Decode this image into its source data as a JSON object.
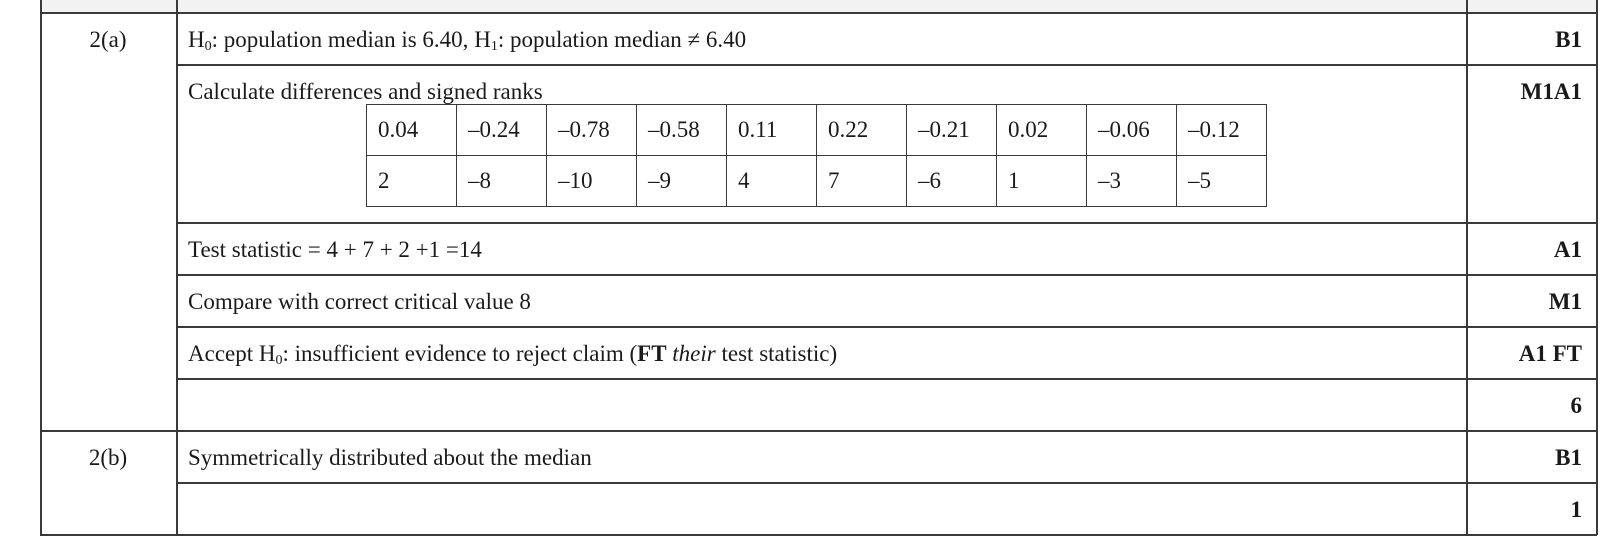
{
  "rows": {
    "hypotheses": {
      "question": "2(a)",
      "h0_symbol": "H",
      "h0_sub": "0",
      "h0_text": ": population median is 6.40, ",
      "h1_symbol": "H",
      "h1_sub": "1",
      "h1_text": ": population median ≠ 6.40",
      "mark": "B1"
    },
    "differences": {
      "text": "Calculate differences and signed ranks",
      "mark": "M1A1",
      "diffs": [
        "0.04",
        "–0.24",
        "–0.78",
        "–0.58",
        "0.11",
        "0.22",
        "–0.21",
        "0.02",
        "–0.06",
        "–0.12"
      ],
      "ranks": [
        "2",
        "–8",
        "–10",
        "–9",
        "4",
        "7",
        "–6",
        "1",
        "–3",
        "–5"
      ]
    },
    "test_statistic": {
      "text": "Test statistic = 4 + 7 + 2 +1 =14",
      "mark": "A1"
    },
    "compare": {
      "text": "Compare with correct critical value 8",
      "mark": "M1"
    },
    "accept": {
      "prefix": "Accept H",
      "sub": "0",
      "middle": ": insufficient evidence to reject claim (",
      "ft": "FT",
      "their": "their",
      "suffix": " test statistic)",
      "mark": "A1 FT"
    },
    "total_a": {
      "mark": "6"
    },
    "part_b": {
      "question": "2(b)",
      "text": "Symmetrically distributed about the median",
      "mark": "B1"
    },
    "total_b": {
      "mark": "1"
    }
  }
}
